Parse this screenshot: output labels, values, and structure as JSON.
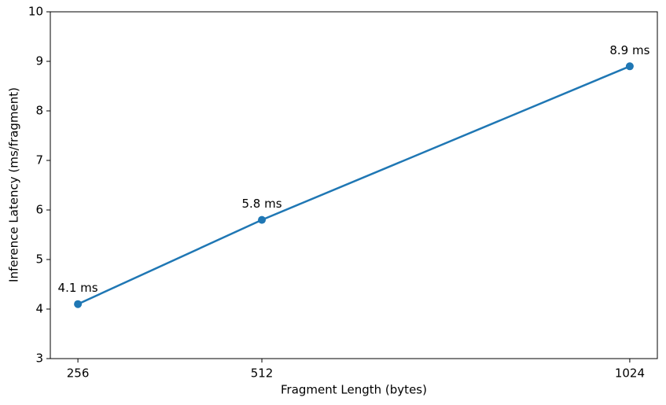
{
  "chart_data": {
    "type": "line",
    "x": [
      256,
      512,
      1024
    ],
    "values": [
      4.1,
      5.8,
      8.9
    ],
    "value_labels": [
      "4.1 ms",
      "5.8 ms",
      "8.9 ms"
    ],
    "color": "#1f77b4",
    "xlabel": "Fragment Length (bytes)",
    "ylabel": "Inference Latency (ms/fragment)",
    "xlim": [
      217.6,
      1062.4
    ],
    "xticks": [
      256,
      512,
      1024
    ],
    "ylim": [
      3,
      10
    ],
    "yticks": [
      3,
      4,
      5,
      6,
      7,
      8,
      9,
      10
    ],
    "grid": false
  }
}
